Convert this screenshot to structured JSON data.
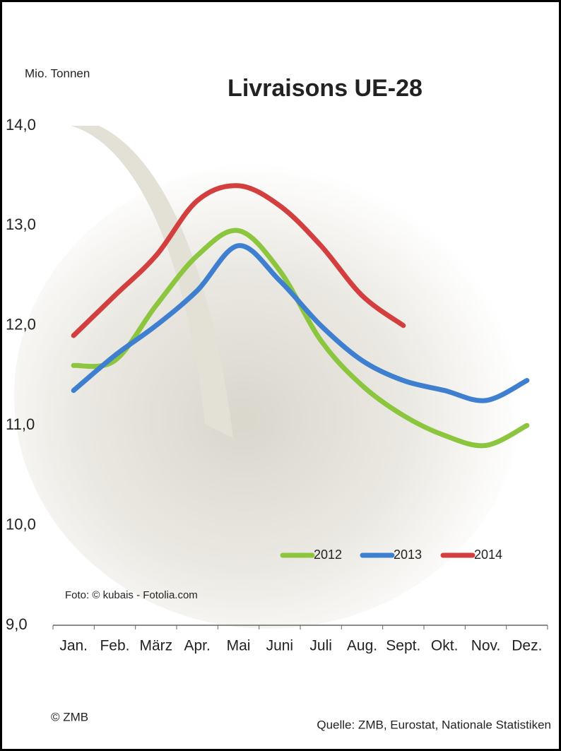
{
  "chart_data": {
    "type": "line",
    "title": "Livraisons UE-28",
    "y_label": "Mio. Tonnen",
    "photo_credit": "Foto: © kubais - Fotolia.com",
    "copyright": "© ZMB",
    "source": "Quelle: ZMB, Eurostat,  Nationale Statistiken",
    "categories": [
      "Jan.",
      "Feb.",
      "März",
      "Apr.",
      "Mai",
      "Juni",
      "Juli",
      "Aug.",
      "Sept.",
      "Okt.",
      "Nov.",
      "Dez."
    ],
    "series": [
      {
        "name": "2012",
        "color": "#8cc63f",
        "values": [
          11.6,
          11.65,
          12.2,
          12.7,
          12.95,
          12.55,
          11.85,
          11.4,
          11.1,
          10.9,
          10.8,
          11.0
        ]
      },
      {
        "name": "2013",
        "color": "#3f7fd0",
        "values": [
          11.35,
          11.7,
          12.0,
          12.35,
          12.8,
          12.45,
          12.0,
          11.65,
          11.45,
          11.35,
          11.25,
          11.45
        ]
      },
      {
        "name": "2014",
        "color": "#d33f3f",
        "values": [
          11.9,
          12.3,
          12.7,
          13.25,
          13.4,
          13.2,
          12.8,
          12.3,
          12.0,
          null,
          null,
          null
        ]
      }
    ],
    "ylim": [
      9,
      14
    ],
    "yticks": [
      {
        "value": 9,
        "label": "9,0"
      },
      {
        "value": 10,
        "label": "10,0"
      },
      {
        "value": 11,
        "label": "11,0"
      },
      {
        "value": 12,
        "label": "12,0"
      },
      {
        "value": 13,
        "label": "13,0"
      },
      {
        "value": 14,
        "label": "14,0"
      }
    ],
    "grid": false
  }
}
